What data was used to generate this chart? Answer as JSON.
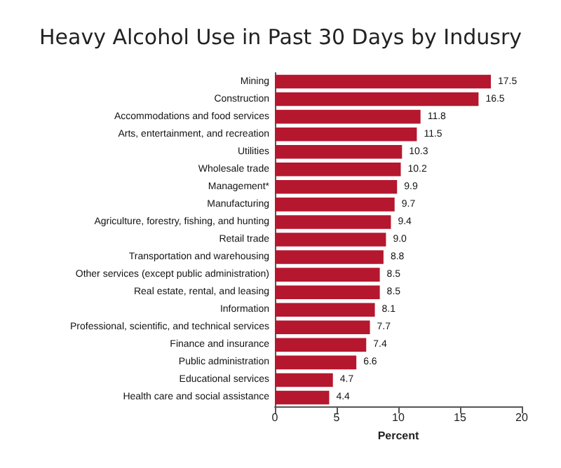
{
  "chart_data": {
    "type": "bar",
    "orientation": "horizontal",
    "title": "Heavy Alcohol Use in Past 30 Days by Indusry",
    "xlabel": "Percent",
    "categories": [
      "Mining",
      "Construction",
      "Accommodations and food services",
      "Arts, entertainment, and recreation",
      "Utilities",
      "Wholesale trade",
      "Management*",
      "Manufacturing",
      "Agriculture, forestry, fishing, and hunting",
      "Retail trade",
      "Transportation and warehousing",
      "Other services (except public administration)",
      "Real estate, rental, and leasing",
      "Information",
      "Professional, scientific, and technical services",
      "Finance and insurance",
      "Public administration",
      "Educational services",
      "Health care and social assistance"
    ],
    "values": [
      17.5,
      16.5,
      11.8,
      11.5,
      10.3,
      10.2,
      9.9,
      9.7,
      9.4,
      9.0,
      8.8,
      8.5,
      8.5,
      8.1,
      7.7,
      7.4,
      6.6,
      4.7,
      4.4
    ],
    "value_labels": [
      "17.5",
      "16.5",
      "11.8",
      "11.5",
      "10.3",
      "10.2",
      "9.9",
      "9.7",
      "9.4",
      "9.0",
      "8.8",
      "8.5",
      "8.5",
      "8.1",
      "7.7",
      "7.4",
      "6.6",
      "4.7",
      "4.4"
    ],
    "color": "#b5172e",
    "xlim": [
      0,
      20
    ],
    "xticks": [
      0,
      5,
      10,
      15,
      20
    ],
    "grid": false
  }
}
